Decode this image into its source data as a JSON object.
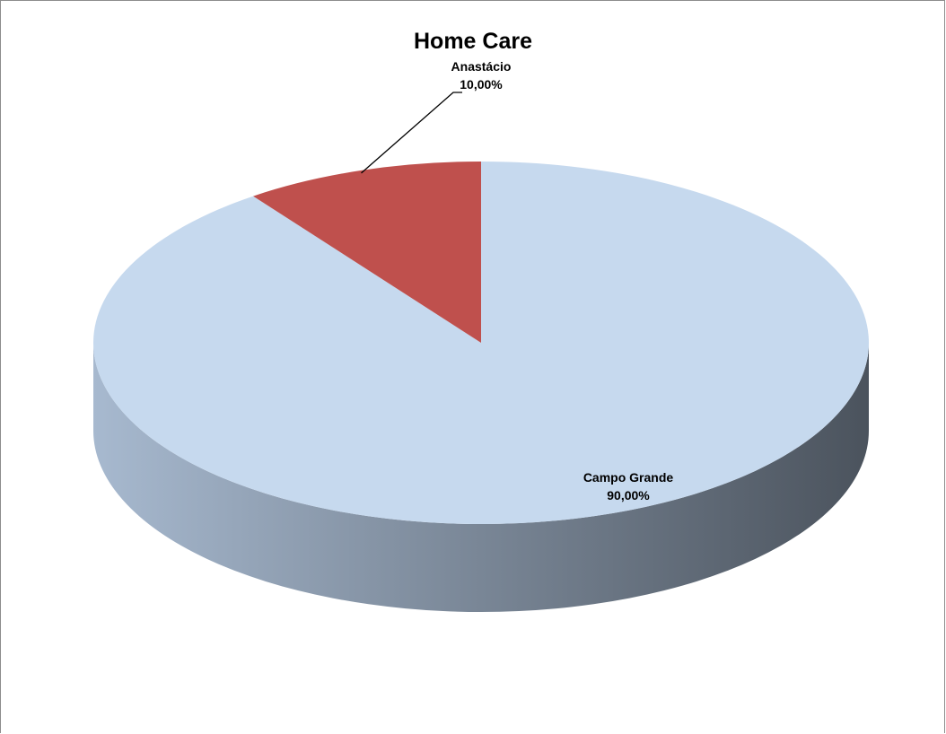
{
  "chart_data": {
    "type": "pie",
    "title": "Home Care",
    "slices": [
      {
        "name": "Campo Grande",
        "value": 90.0,
        "label": "90,00%",
        "color": "#c6d9ee"
      },
      {
        "name": "Anastácio",
        "value": 10.0,
        "label": "10,00%",
        "color": "#bf504d"
      }
    ],
    "side_colors": [
      "#a7b9cf",
      "#4b535d"
    ],
    "legend": "none"
  }
}
